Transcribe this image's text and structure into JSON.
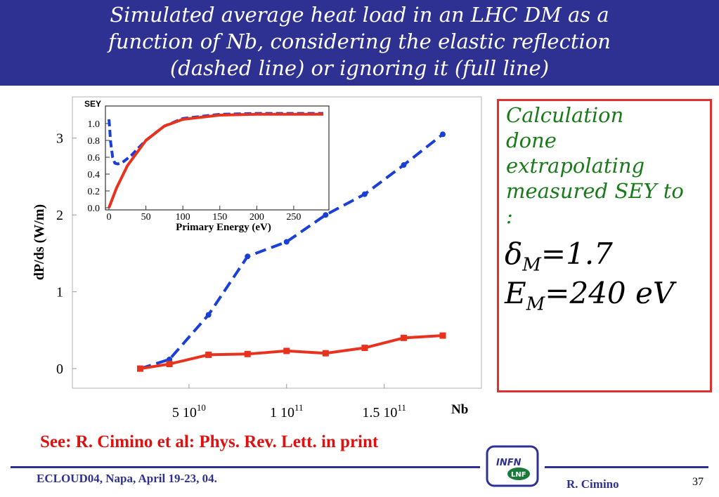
{
  "slide": {
    "title_lines": [
      "Simulated average heat load in an LHC DM as a",
      "function of Nb, considering the elastic reflection",
      "(dashed line) or ignoring it (full line)"
    ],
    "calc_lines": [
      "Calculation",
      "done",
      "extrapolating",
      "measured SEY to",
      ":"
    ],
    "delta": {
      "symbol": "δ",
      "sub": "M",
      "value": "=1.7"
    },
    "energy": {
      "symbol": "E",
      "sub": "M",
      "value": "=240 eV"
    },
    "reference": "See: R. Cimino et al: Phys. Rev. Lett. in print",
    "footer_left": "ECLOUD04, Napa, April 19-23, 04.",
    "footer_author": "R. Cimino",
    "page_number": "37",
    "logo_top": "INFN",
    "logo_bottom": "LNF"
  },
  "colors": {
    "title_bg": "#2e3192",
    "dashed": "#1a3fd4",
    "full": "#e8321e",
    "calc_text": "#1a7a1a",
    "box_border": "#e03030"
  },
  "chart_data": [
    {
      "type": "line",
      "title": "",
      "xlabel": "Nb",
      "ylabel": "dP/ds (W/m)",
      "xlim": [
        0,
        180000000000
      ],
      "ylim": [
        -0.2,
        3.5
      ],
      "xticks": [
        {
          "value": 50000000000,
          "label": "5 10",
          "exp": "10"
        },
        {
          "value": 100000000000,
          "label": "1 10",
          "exp": "11"
        },
        {
          "value": 150000000000,
          "label": "1.5 10",
          "exp": "11"
        }
      ],
      "yticks": [
        0,
        1,
        2,
        3
      ],
      "series": [
        {
          "style": "dashed",
          "color": "#1a3fd4",
          "x": [
            25000000000,
            40000000000,
            60000000000,
            80000000000,
            100000000000,
            120000000000,
            140000000000,
            160000000000,
            180000000000
          ],
          "y": [
            0.0,
            0.12,
            0.7,
            1.46,
            1.65,
            2.0,
            2.27,
            2.65,
            3.05
          ]
        },
        {
          "style": "solid",
          "color": "#e8321e",
          "x": [
            25000000000,
            40000000000,
            60000000000,
            80000000000,
            100000000000,
            120000000000,
            140000000000,
            160000000000,
            180000000000
          ],
          "y": [
            0.0,
            0.06,
            0.18,
            0.19,
            0.23,
            0.2,
            0.27,
            0.4,
            0.43
          ]
        }
      ]
    },
    {
      "type": "line",
      "title": "",
      "xlabel": "Primary Energy (eV)",
      "ylabel": "SEY",
      "xlim": [
        0,
        290
      ],
      "ylim": [
        0,
        1.1
      ],
      "xticks": [
        0,
        50,
        100,
        150,
        200,
        250
      ],
      "yticks": [
        "0.0",
        "0.2",
        "0.4",
        "0.6",
        "0.8",
        "1.0"
      ],
      "series": [
        {
          "style": "dashed",
          "color": "#1a3fd4",
          "x": [
            0,
            1,
            2,
            5,
            8,
            12,
            16,
            20,
            30,
            50,
            75,
            100,
            150,
            200,
            250,
            290
          ],
          "y": [
            1.05,
            0.95,
            0.8,
            0.6,
            0.53,
            0.52,
            0.53,
            0.55,
            0.62,
            0.8,
            0.97,
            1.06,
            1.11,
            1.12,
            1.12,
            1.12
          ]
        },
        {
          "style": "solid",
          "color": "#e8321e",
          "x": [
            0,
            10,
            25,
            50,
            75,
            100,
            150,
            200,
            250,
            290
          ],
          "y": [
            0.0,
            0.23,
            0.5,
            0.8,
            0.97,
            1.05,
            1.1,
            1.11,
            1.11,
            1.11
          ]
        }
      ]
    }
  ]
}
